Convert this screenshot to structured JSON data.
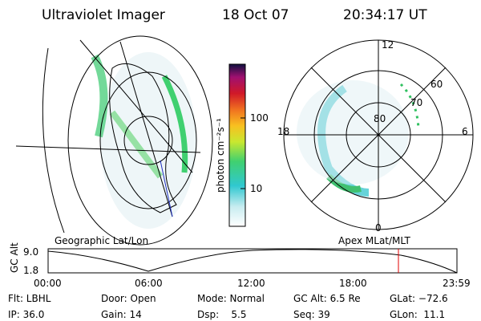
{
  "header": {
    "title": "Ultraviolet Imager",
    "date": "18 Oct 07",
    "time": "20:34:17 UT"
  },
  "colorbar": {
    "label": "photon cm⁻²s⁻¹",
    "ticks": [
      "100",
      "10"
    ]
  },
  "polar_plot": {
    "labels": [
      "12",
      "60",
      "70",
      "80",
      "18",
      "6",
      "0"
    ]
  },
  "map_titles": {
    "left": "Geographic Lat/Lon",
    "right": "Apex MLat/MLT"
  },
  "altitude_plot": {
    "axis_label": "GC Alt",
    "yticks": [
      "9.0",
      "1.8"
    ],
    "xticks": [
      "00:00",
      "06:00",
      "12:00",
      "18:00",
      "23:59"
    ]
  },
  "info": [
    [
      "Flt: LBHL",
      "Door: Open",
      "Mode: Normal",
      "GC Alt: 6.5 Re",
      "GLat: −72.6"
    ],
    [
      "IP: 36.0",
      "Gain: 14",
      "Dsp:    5.5",
      "Seq: 39",
      "GLon:  11.1"
    ]
  ]
}
